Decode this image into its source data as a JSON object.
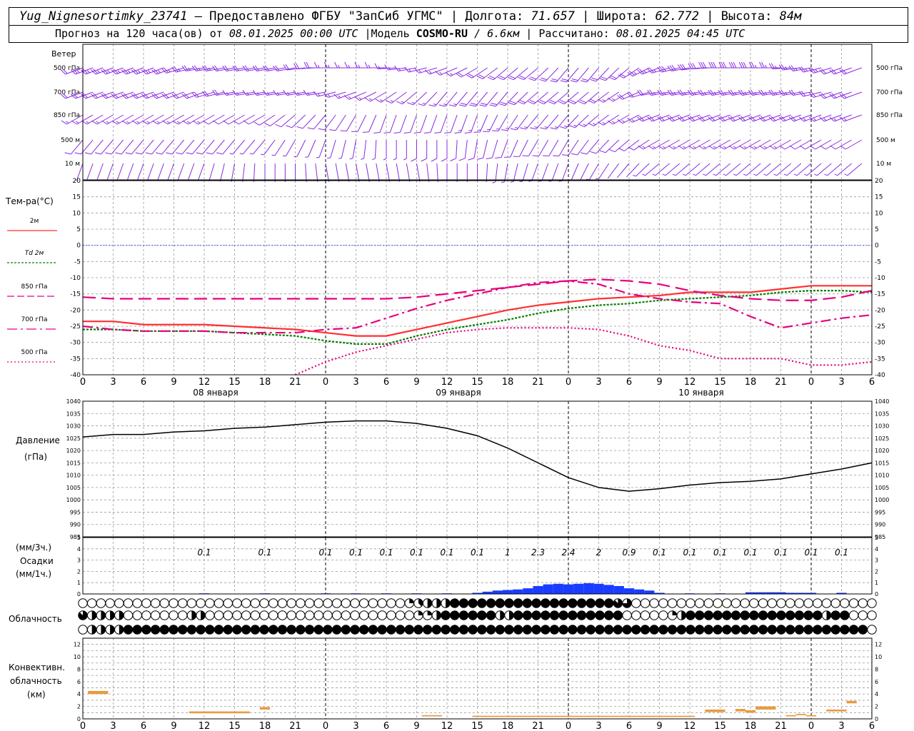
{
  "header": {
    "station": "Yug_Nignesortimky_23741",
    "dash": " — ",
    "provided": "Предоставлено ФГБУ \"ЗапСиб УГМС\"",
    "sep": " | ",
    "lon_label": "Долгота:",
    "lon": "71.657",
    "lat_label": "Широта:",
    "lat": "62.772",
    "alt_label": "Высота:",
    "alt": "84м",
    "forecast_label": "Прогноз на 120 часа(ов)  от",
    "forecast_from": "08.01.2025 00:00 UTC",
    "model_label": "|Модель",
    "model": "COSMO-RU",
    "model_res": "/ 6.6км",
    "calc_label": "| Рассчитано:",
    "calc": "08.01.2025 04:45 UTC"
  },
  "colors": {
    "wind": "#8a2be2",
    "t2m": "#ff3030",
    "td2m": "#008000",
    "t850": "#e6007e",
    "t700": "#e6007e",
    "t500": "#e6007e",
    "zero_line": "#3050ff",
    "precip": "#1a3cff",
    "conv": "#e89a40",
    "grid": "#9a9a9a"
  },
  "wind_panel": {
    "title": "Ветер",
    "levels": [
      "500 гПа",
      "700 гПа",
      "850 гПа",
      "500 м",
      "10  м"
    ],
    "levels_right": [
      "500 гПа",
      "700 гПа",
      "850 гПа",
      "500 м",
      "10  м"
    ]
  },
  "temp_panel": {
    "title": "Тем-ра(°C)",
    "legend": [
      "2м",
      "Td  2м",
      "850 гПа",
      "700 гПа",
      "500 гПа"
    ],
    "y_ticks": [
      "20",
      "15",
      "10",
      "5",
      "0",
      "-5",
      "-10",
      "-15",
      "-20",
      "-25",
      "-30",
      "-35",
      "-40"
    ]
  },
  "time_axis": {
    "hours": [
      "0",
      "3",
      "6",
      "9",
      "12",
      "15",
      "18",
      "21",
      "0",
      "3",
      "6",
      "9",
      "12",
      "15",
      "18",
      "21",
      "0",
      "3",
      "6",
      "9",
      "12",
      "15",
      "18",
      "21",
      "0",
      "3",
      "6"
    ],
    "days": [
      "08 января",
      "09 января",
      "10 января"
    ]
  },
  "pressure_panel": {
    "title1": "Давление",
    "title2": "(гПа)",
    "y_ticks": [
      "1040",
      "1035",
      "1030",
      "1025",
      "1020",
      "1015",
      "1010",
      "1005",
      "1000",
      "995",
      "990",
      "985"
    ]
  },
  "precip_panel": {
    "title1": "(мм/3ч.)",
    "title2": "Осадки",
    "title3": "(мм/1ч.)",
    "y_ticks": [
      "5",
      "4",
      "3",
      "2",
      "1",
      "0"
    ],
    "totals": [
      {
        "h": 12,
        "v": "0.1"
      },
      {
        "h": 18,
        "v": "0.1"
      },
      {
        "h": 24,
        "v": "0.1"
      },
      {
        "h": 27,
        "v": "0.1"
      },
      {
        "h": 30,
        "v": "0.1"
      },
      {
        "h": 33,
        "v": "0.1"
      },
      {
        "h": 36,
        "v": "0.1"
      },
      {
        "h": 39,
        "v": "0.1"
      },
      {
        "h": 42,
        "v": "1"
      },
      {
        "h": 45,
        "v": "2.3"
      },
      {
        "h": 48,
        "v": "2.4"
      },
      {
        "h": 51,
        "v": "2"
      },
      {
        "h": 54,
        "v": "0.9"
      },
      {
        "h": 57,
        "v": "0.1"
      },
      {
        "h": 60,
        "v": "0.1"
      },
      {
        "h": 63,
        "v": "0.1"
      },
      {
        "h": 66,
        "v": "0.1"
      },
      {
        "h": 69,
        "v": "0.1"
      },
      {
        "h": 72,
        "v": "0.1"
      },
      {
        "h": 75,
        "v": "0.1"
      }
    ]
  },
  "cloud_panel": {
    "title": "Облачность"
  },
  "conv_panel": {
    "title1": "Конвективн.",
    "title2": "облачность",
    "title3": "(км)",
    "y_ticks": [
      "12",
      "10",
      "8",
      "6",
      "4",
      "2",
      "0"
    ]
  },
  "chart_data": [
    {
      "type": "line",
      "name": "temperature",
      "x_unit": "hours since 08.01.2025 00:00 UTC",
      "ylim": [
        -40,
        20
      ],
      "grid": true,
      "series": [
        {
          "name": "2м",
          "x": [
            0,
            3,
            6,
            9,
            12,
            15,
            18,
            21,
            24,
            27,
            30,
            33,
            36,
            39,
            42,
            45,
            48,
            51,
            54,
            57,
            60,
            63,
            66,
            69,
            72,
            75,
            78
          ],
          "values": [
            -23.5,
            -23.5,
            -24.5,
            -24.5,
            -24.5,
            -25,
            -25.5,
            -26,
            -27,
            -28,
            -28,
            -26,
            -24,
            -22,
            -20,
            -18.5,
            -17.5,
            -16.5,
            -16,
            -15.5,
            -14.5,
            -14.5,
            -14.5,
            -13.5,
            -12.5,
            -12.5,
            -12.5
          ]
        },
        {
          "name": "Td  2м",
          "x": [
            0,
            3,
            6,
            9,
            12,
            15,
            18,
            21,
            24,
            27,
            30,
            33,
            36,
            39,
            42,
            45,
            48,
            51,
            54,
            57,
            60,
            63,
            66,
            69,
            72,
            75,
            78
          ],
          "values": [
            -26,
            -26,
            -26.5,
            -26.5,
            -26.5,
            -27,
            -27.5,
            -28,
            -29.5,
            -30.5,
            -30.5,
            -28,
            -26,
            -24.5,
            -23,
            -21,
            -19.5,
            -18.5,
            -18,
            -17,
            -16.5,
            -16,
            -15.5,
            -14.5,
            -14,
            -14,
            -14.5
          ]
        },
        {
          "name": "850 гПа",
          "x": [
            0,
            3,
            6,
            9,
            12,
            15,
            18,
            21,
            24,
            27,
            30,
            33,
            36,
            39,
            42,
            45,
            48,
            51,
            54,
            57,
            60,
            63,
            66,
            69,
            72,
            75,
            78
          ],
          "values": [
            -16,
            -16.5,
            -16.5,
            -16.5,
            -16.5,
            -16.5,
            -16.5,
            -16.5,
            -16.5,
            -16.5,
            -16.5,
            -16,
            -15,
            -14,
            -13,
            -12,
            -11,
            -10.5,
            -11,
            -12,
            -14,
            -15.5,
            -16.5,
            -17,
            -17,
            -16,
            -14
          ]
        },
        {
          "name": "700 гПа",
          "x": [
            0,
            3,
            6,
            9,
            12,
            15,
            18,
            21,
            24,
            27,
            30,
            33,
            36,
            39,
            42,
            45,
            48,
            51,
            54,
            57,
            60,
            63,
            66,
            69,
            72,
            75,
            78
          ],
          "values": [
            -25,
            -26,
            -26.5,
            -26.5,
            -26.5,
            -27,
            -27,
            -27,
            -26,
            -25.5,
            -22.5,
            -19.5,
            -17,
            -15,
            -13,
            -11.5,
            -11,
            -12,
            -15,
            -16.5,
            -17.5,
            -18,
            -22,
            -25.5,
            -24,
            -22.5,
            -21.5
          ]
        },
        {
          "name": "500 гПа",
          "x": [
            21,
            24,
            27,
            30,
            33,
            36,
            39,
            42,
            45,
            48,
            51,
            54,
            57,
            60,
            63,
            66,
            69,
            72,
            75,
            78
          ],
          "values": [
            -40,
            -36,
            -33,
            -31,
            -29,
            -27,
            -26,
            -25.5,
            -25.5,
            -25.5,
            -26,
            -28,
            -31,
            -32.5,
            -35,
            -35,
            -35,
            -37,
            -37,
            -36
          ]
        }
      ]
    },
    {
      "type": "line",
      "name": "pressure",
      "x_unit": "hours since 08.01.2025 00:00 UTC",
      "ylim": [
        985,
        1040
      ],
      "grid": true,
      "series": [
        {
          "name": "Давление",
          "x": [
            0,
            3,
            6,
            9,
            12,
            15,
            18,
            21,
            24,
            27,
            30,
            33,
            36,
            39,
            42,
            45,
            48,
            51,
            54,
            57,
            60,
            63,
            66,
            69,
            72,
            75,
            78
          ],
          "values": [
            1025.5,
            1026.5,
            1026.5,
            1027.5,
            1028,
            1029,
            1029.5,
            1030.5,
            1031.5,
            1032,
            1032,
            1031,
            1029,
            1026,
            1021,
            1015,
            1009,
            1005,
            1003.5,
            1004.5,
            1006,
            1007,
            1007.5,
            1008.5,
            1010.5,
            1012.5,
            1015
          ]
        }
      ]
    },
    {
      "type": "bar",
      "name": "precipitation_1h",
      "x_unit": "hours since 08.01.2025 00:00 UTC",
      "ylim": [
        0,
        5
      ],
      "x": [
        12,
        18,
        24,
        27,
        30,
        33,
        36,
        39,
        40,
        41,
        42,
        43,
        44,
        45,
        46,
        47,
        48,
        49,
        50,
        51,
        52,
        53,
        54,
        55,
        56,
        57,
        60,
        63,
        66,
        67,
        68,
        69,
        70,
        71,
        72,
        75
      ],
      "values": [
        0.05,
        0.05,
        0.05,
        0.05,
        0.05,
        0.05,
        0.05,
        0.1,
        0.2,
        0.3,
        0.35,
        0.4,
        0.5,
        0.7,
        0.85,
        0.9,
        0.85,
        0.9,
        0.95,
        0.9,
        0.8,
        0.7,
        0.5,
        0.4,
        0.3,
        0.1,
        0.05,
        0.05,
        0.15,
        0.15,
        0.15,
        0.15,
        0.1,
        0.1,
        0.1,
        0.1
      ]
    },
    {
      "type": "table",
      "name": "cloudiness",
      "rows": [
        "0000000000000000000000000000000000002344488888888888888888876000000000000000000000000000",
        "7444400000004400000000000000000000000224888888448888888888880000024888888888888888488000",
        "0444488888888888888888888888888888888888888888888888888888888888888888888888888888888880"
      ]
    },
    {
      "type": "bar",
      "name": "convective_cloudiness",
      "x_unit": "hours since 08.01.2025 00:00 UTC",
      "ylim": [
        0,
        12
      ],
      "segments": [
        {
          "x0": 0.5,
          "x1": 2.5,
          "base": 4.0,
          "top": 4.5
        },
        {
          "x0": 10.5,
          "x1": 16.5,
          "base": 0.9,
          "top": 1.2
        },
        {
          "x0": 17.5,
          "x1": 18.5,
          "base": 1.5,
          "top": 1.9
        },
        {
          "x0": 33.5,
          "x1": 35.5,
          "base": 0.4,
          "top": 0.6
        },
        {
          "x0": 38.5,
          "x1": 60.5,
          "base": 0.3,
          "top": 0.5
        },
        {
          "x0": 61.5,
          "x1": 63.5,
          "base": 1.1,
          "top": 1.5
        },
        {
          "x0": 64.5,
          "x1": 65.5,
          "base": 1.2,
          "top": 1.6
        },
        {
          "x0": 65.5,
          "x1": 66.5,
          "base": 1.0,
          "top": 1.4
        },
        {
          "x0": 66.5,
          "x1": 68.5,
          "base": 1.5,
          "top": 2.0
        },
        {
          "x0": 69.5,
          "x1": 70.5,
          "base": 0.4,
          "top": 0.6
        },
        {
          "x0": 70.5,
          "x1": 71.5,
          "base": 0.6,
          "top": 0.8
        },
        {
          "x0": 71.5,
          "x1": 72.5,
          "base": 0.4,
          "top": 0.6
        },
        {
          "x0": 73.5,
          "x1": 75.5,
          "base": 1.2,
          "top": 1.5
        },
        {
          "x0": 75.5,
          "x1": 76.5,
          "base": 2.5,
          "top": 2.9
        }
      ]
    },
    {
      "type": "scatter",
      "name": "wind_barbs",
      "note_units": "direction degrees (from), speed m/s",
      "rows": [
        {
          "level": "500 гПа",
          "dir": [
            250,
            250,
            250,
            250,
            260,
            260,
            260,
            260,
            270,
            270,
            270,
            260,
            250,
            240,
            230,
            230,
            220,
            220,
            230,
            250,
            260,
            270,
            270,
            270,
            260,
            250
          ],
          "spd": [
            22,
            24,
            25,
            25,
            24,
            22,
            20,
            20,
            18,
            16,
            14,
            14,
            16,
            18,
            20,
            22,
            22,
            20,
            18,
            25,
            28,
            28,
            28,
            26,
            24,
            22
          ]
        },
        {
          "level": "700 гПа",
          "dir": [
            250,
            250,
            250,
            250,
            250,
            260,
            260,
            260,
            260,
            250,
            240,
            230,
            220,
            220,
            220,
            230,
            230,
            230,
            240,
            260,
            260,
            260,
            260,
            260,
            260,
            250
          ],
          "spd": [
            18,
            19,
            20,
            20,
            19,
            18,
            17,
            16,
            15,
            14,
            14,
            15,
            17,
            18,
            19,
            20,
            20,
            19,
            17,
            22,
            24,
            25,
            25,
            24,
            22,
            20
          ]
        },
        {
          "level": "850 гПа",
          "dir": [
            240,
            240,
            240,
            240,
            240,
            240,
            240,
            230,
            220,
            210,
            200,
            200,
            200,
            200,
            210,
            220,
            220,
            230,
            240,
            250,
            250,
            250,
            250,
            250,
            250,
            250
          ],
          "spd": [
            14,
            14,
            14,
            14,
            14,
            13,
            12,
            11,
            10,
            10,
            11,
            12,
            13,
            14,
            15,
            16,
            16,
            15,
            14,
            18,
            20,
            20,
            20,
            19,
            18,
            17
          ]
        },
        {
          "level": "500 м",
          "dir": [
            220,
            220,
            220,
            220,
            220,
            220,
            220,
            210,
            200,
            190,
            180,
            180,
            180,
            190,
            200,
            210,
            210,
            220,
            230,
            240,
            240,
            240,
            240,
            240,
            240,
            240
          ],
          "spd": [
            10,
            10,
            10,
            10,
            10,
            9,
            8,
            7,
            7,
            7,
            8,
            9,
            10,
            11,
            12,
            13,
            13,
            12,
            11,
            14,
            15,
            15,
            15,
            14,
            13,
            12
          ]
        },
        {
          "level": "10  м",
          "dir": [
            200,
            200,
            200,
            200,
            200,
            190,
            180,
            180,
            170,
            170,
            170,
            170,
            180,
            180,
            190,
            200,
            200,
            210,
            220,
            230,
            230,
            230,
            230,
            230,
            230,
            230
          ],
          "spd": [
            4,
            4,
            4,
            3,
            3,
            3,
            2,
            2,
            2,
            3,
            3,
            3,
            4,
            4,
            5,
            5,
            5,
            5,
            4,
            5,
            5,
            5,
            5,
            5,
            5,
            5
          ]
        }
      ]
    }
  ]
}
